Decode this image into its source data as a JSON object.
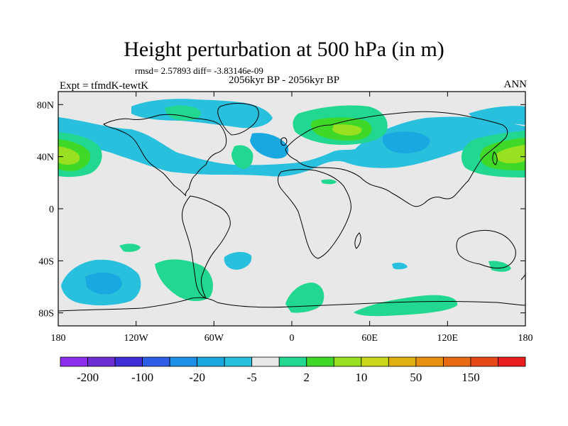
{
  "title": "Height perturbation at 500 hPa (in m)",
  "stats": "rmsd= 2.57893 diff= -3.83146e-09",
  "period": "2056kyr BP - 2056kyr BP",
  "experiment": "Expt = tfmdK-tewtK",
  "season": "ANN",
  "map": {
    "projection": "cylindrical-equidistant",
    "lon_range": [
      -180,
      180
    ],
    "lat_range": [
      -90,
      90
    ],
    "background_color": "#e8e8e8",
    "x_ticks": [
      {
        "value": -180,
        "label": "180"
      },
      {
        "value": -120,
        "label": "120W"
      },
      {
        "value": -60,
        "label": "60W"
      },
      {
        "value": 0,
        "label": "0"
      },
      {
        "value": 60,
        "label": "60E"
      },
      {
        "value": 120,
        "label": "120E"
      },
      {
        "value": 180,
        "label": "180"
      }
    ],
    "y_ticks": [
      {
        "value": 80,
        "label": "80N"
      },
      {
        "value": 40,
        "label": "40N"
      },
      {
        "value": 0,
        "label": "0"
      },
      {
        "value": -40,
        "label": "40S"
      },
      {
        "value": -80,
        "label": "80S"
      }
    ]
  },
  "colorbar": {
    "colors": [
      "#8c2eec",
      "#6e2ed4",
      "#3e2ed4",
      "#2e5ee8",
      "#1e90e8",
      "#1aa8e0",
      "#28c0dc",
      "#e8e8e8",
      "#22d890",
      "#40d828",
      "#98e020",
      "#c8d818",
      "#e0b010",
      "#e89010",
      "#e86a14",
      "#e84818",
      "#e81c1c"
    ],
    "labels": [
      "-200",
      "-100",
      "-20",
      "-5",
      "2",
      "10",
      "50",
      "150"
    ],
    "label_after_box": [
      1,
      3,
      5,
      7,
      9,
      11,
      13,
      15
    ]
  }
}
